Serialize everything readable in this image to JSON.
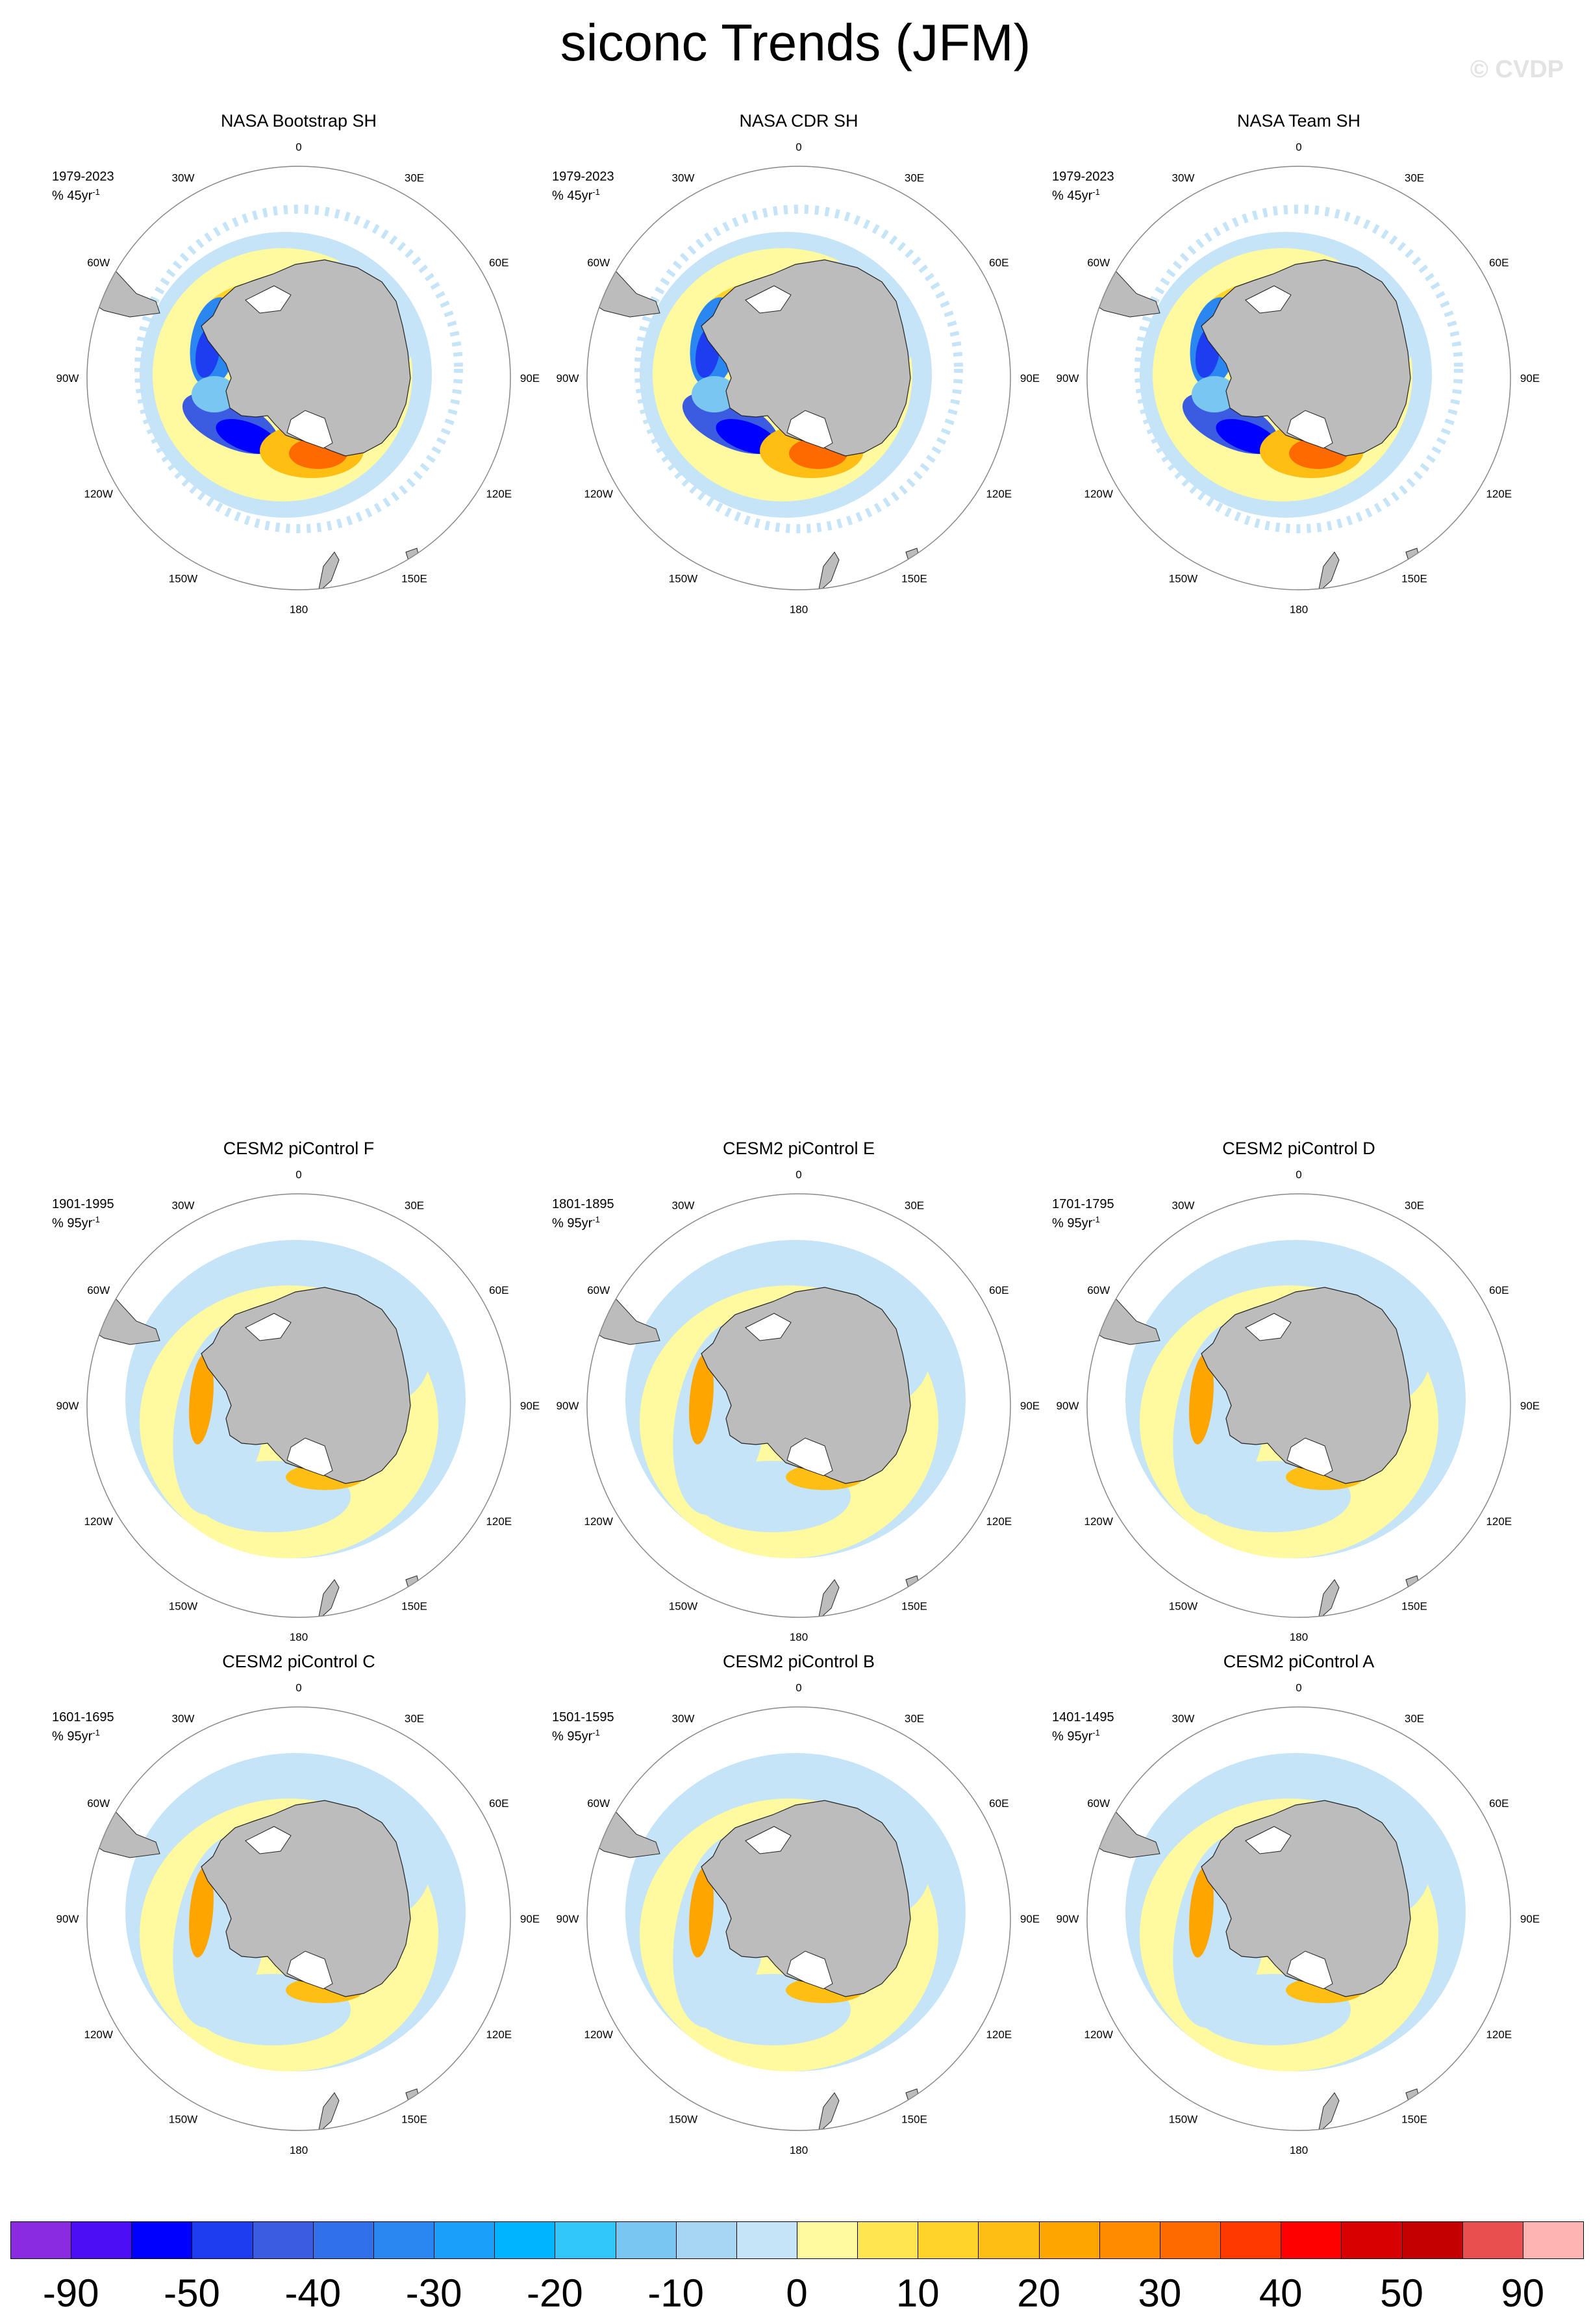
{
  "title": "siconc Trends (JFM)",
  "watermark": "© CVDP",
  "panels": [
    {
      "title": "NASA Bootstrap SH",
      "period": "1979-2023",
      "units": "% 45yr",
      "pattern": "obs"
    },
    {
      "title": "NASA CDR SH",
      "period": "1979-2023",
      "units": "% 45yr",
      "pattern": "obs"
    },
    {
      "title": "NASA Team SH",
      "period": "1979-2023",
      "units": "% 45yr",
      "pattern": "obs"
    },
    {
      "title": "CESM2 piControl F",
      "period": "1901-1995",
      "units": "% 95yr",
      "pattern": "model"
    },
    {
      "title": "CESM2 piControl E",
      "period": "1801-1895",
      "units": "% 95yr",
      "pattern": "model"
    },
    {
      "title": "CESM2 piControl D",
      "period": "1701-1795",
      "units": "% 95yr",
      "pattern": "model"
    },
    {
      "title": "CESM2 piControl C",
      "period": "1601-1695",
      "units": "% 95yr",
      "pattern": "model"
    },
    {
      "title": "CESM2 piControl B",
      "period": "1501-1595",
      "units": "% 95yr",
      "pattern": "model"
    },
    {
      "title": "CESM2 piControl A",
      "period": "1401-1495",
      "units": "% 95yr",
      "pattern": "model"
    }
  ],
  "unit_exponent": "-1",
  "lon_labels": [
    "0",
    "30E",
    "60E",
    "90E",
    "120E",
    "150E",
    "180",
    "150W",
    "120W",
    "90W",
    "60W",
    "30W"
  ],
  "colorbar": {
    "colors": [
      "#8a2be2",
      "#4b0ef5",
      "#0000ff",
      "#1e3cf0",
      "#3b5ce0",
      "#3070ea",
      "#2a86f0",
      "#1aa0f8",
      "#00b4ff",
      "#30c6fa",
      "#7ac6f2",
      "#a6d6f2",
      "#c6e4f8",
      "#fffaa0",
      "#ffe650",
      "#ffd32a",
      "#ffbe14",
      "#ffa500",
      "#ff8c00",
      "#ff6a00",
      "#ff3a00",
      "#ff0000",
      "#d80000",
      "#c40000",
      "#e85050",
      "#ffb4b4"
    ],
    "labels": [
      "-90",
      "-50",
      "-40",
      "-30",
      "-20",
      "-10",
      "0",
      "10",
      "20",
      "30",
      "40",
      "50",
      "90"
    ]
  }
}
